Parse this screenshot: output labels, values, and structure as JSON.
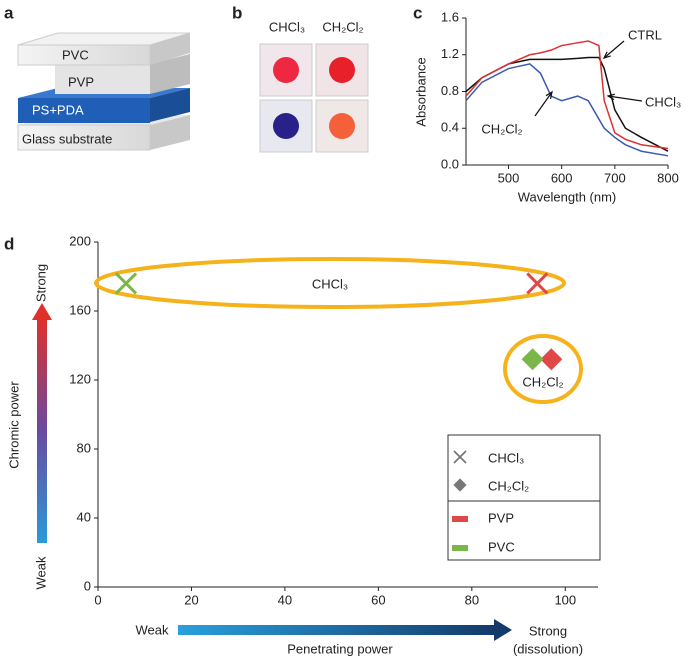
{
  "panels": [
    "a",
    "b",
    "c",
    "d"
  ],
  "layers": [
    "PVC",
    "PVP",
    "PS+PDA",
    "Glass substrate"
  ],
  "solvents": [
    "CHCl₃",
    "CH₂Cl₂"
  ],
  "chart_data": [
    {
      "type": "line",
      "x_label": "Wavelength (nm)",
      "y_label": "Absorbance",
      "x": [
        420,
        450,
        500,
        540,
        560,
        580,
        600,
        630,
        650,
        670,
        680,
        700,
        720,
        750,
        800
      ],
      "series": [
        {
          "name": "CTRL",
          "color": "#111111",
          "values": [
            0.8,
            0.95,
            1.1,
            1.15,
            1.15,
            1.15,
            1.15,
            1.16,
            1.17,
            1.17,
            1.05,
            0.6,
            0.4,
            0.3,
            0.15
          ]
        },
        {
          "name": "CHCl₃",
          "color": "#e03030",
          "values": [
            0.75,
            0.95,
            1.1,
            1.2,
            1.22,
            1.25,
            1.3,
            1.33,
            1.35,
            1.3,
            0.7,
            0.35,
            0.28,
            0.22,
            0.18
          ]
        },
        {
          "name": "CH₂Cl₂",
          "color": "#3a5bb0",
          "values": [
            0.7,
            0.9,
            1.05,
            1.1,
            1.0,
            0.75,
            0.7,
            0.75,
            0.7,
            0.5,
            0.4,
            0.3,
            0.22,
            0.15,
            0.1
          ]
        }
      ],
      "xlim": [
        420,
        800
      ],
      "xticks": [
        500,
        600,
        700,
        800
      ],
      "ylim": [
        0,
        1.6
      ],
      "yticks": [
        {
          "value": 0,
          "label": "0.0"
        },
        0.4,
        0.8,
        1.2,
        1.6
      ]
    },
    {
      "type": "scatter",
      "y_label": "Chromic power",
      "y_weak": "Weak",
      "y_strong": "Strong",
      "x_label": "Penetrating power",
      "x_weak": "Weak",
      "x_strong": [
        "Strong",
        "(dissolution)"
      ],
      "markers": [
        {
          "name": "CHCl₃",
          "shape": "x"
        },
        {
          "name": "CH₂Cl₂",
          "shape": "diamond"
        }
      ],
      "series": [
        {
          "name": "PVP",
          "color": "#e04848",
          "x": [
            94,
            97
          ],
          "values": [
            176,
            132
          ]
        },
        {
          "name": "PVC",
          "color": "#7ab648",
          "x": [
            6,
            93
          ],
          "values": [
            176,
            132
          ]
        }
      ],
      "groups": [
        "CHCl₃",
        "CH₂Cl₂"
      ],
      "xlim": [
        0,
        107
      ],
      "xticks": [
        0,
        20,
        40,
        60,
        80,
        100
      ],
      "ylim": [
        0,
        200
      ],
      "yticks": [
        0,
        40,
        80,
        120,
        160,
        200
      ]
    }
  ]
}
